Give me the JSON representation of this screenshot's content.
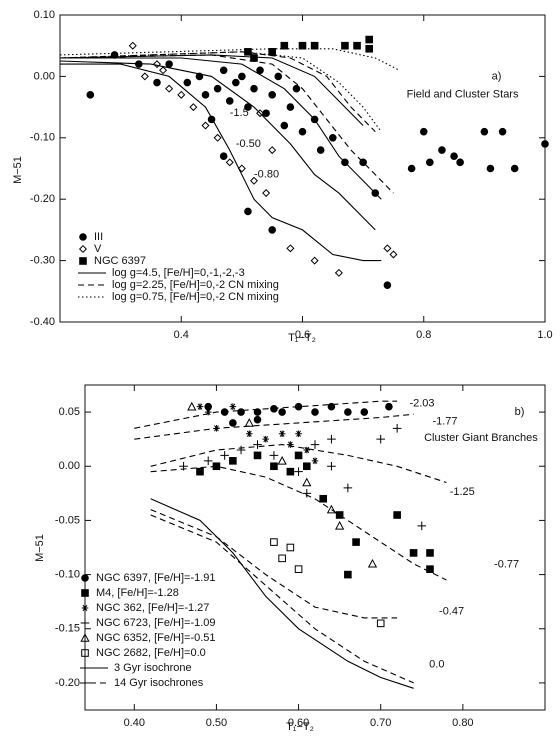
{
  "chart_data": [
    {
      "type": "scatter",
      "x_label": "T₁−T₂",
      "y_label": "M−51",
      "xlim": [
        0.2,
        1.0
      ],
      "ylim": [
        -0.4,
        0.1
      ],
      "xticks": [
        0.4,
        0.6,
        0.8,
        {
          "value": 1.0,
          "label": "1.0"
        }
      ],
      "yticks": [
        {
          "value": -0.4,
          "label": "-0.40"
        },
        {
          "value": -0.3,
          "label": "-0.30"
        },
        {
          "value": -0.2,
          "label": "-0.20"
        },
        {
          "value": -0.1,
          "label": "-0.10"
        },
        {
          "value": 0,
          "label": "0.00"
        },
        {
          "value": 0.1,
          "label": "0.10"
        }
      ],
      "legend": "lower left",
      "annotations": [
        "-1.5",
        "-0.50",
        "-0.80",
        "a)",
        "Field and Cluster Stars"
      ],
      "series": [
        {
          "name": "III",
          "marker": "circle",
          "filled": true,
          "color": "#000",
          "x": [
            0.29,
            0.25,
            0.33,
            0.36,
            0.38,
            0.41,
            0.43,
            0.44,
            0.46,
            0.47,
            0.48,
            0.49,
            0.5,
            0.51,
            0.52,
            0.53,
            0.54,
            0.55,
            0.56,
            0.57,
            0.58,
            0.59,
            0.6,
            0.62,
            0.63,
            0.65,
            0.67,
            0.7,
            0.72,
            0.74,
            0.78,
            0.8,
            0.81,
            0.83,
            0.85,
            0.86,
            0.9,
            0.91,
            0.93,
            0.95,
            1.0,
            0.55,
            0.51,
            0.47,
            0.45
          ],
          "values": [
            0.035,
            -0.03,
            0.02,
            -0.01,
            0.02,
            -0.01,
            0.0,
            -0.03,
            -0.02,
            0.01,
            -0.04,
            -0.01,
            0.0,
            -0.05,
            -0.02,
            0.01,
            -0.06,
            -0.03,
            0.0,
            -0.08,
            -0.05,
            -0.02,
            -0.09,
            -0.07,
            -0.12,
            -0.1,
            -0.14,
            -0.14,
            -0.19,
            -0.34,
            -0.15,
            -0.09,
            -0.14,
            -0.12,
            -0.13,
            -0.14,
            -0.09,
            -0.15,
            -0.09,
            -0.15,
            -0.11,
            -0.25,
            -0.22,
            -0.13,
            -0.07
          ]
        },
        {
          "name": "V",
          "marker": "diamond",
          "filled": false,
          "color": "#000",
          "x": [
            0.32,
            0.34,
            0.36,
            0.37,
            0.38,
            0.4,
            0.42,
            0.44,
            0.46,
            0.48,
            0.5,
            0.52,
            0.54,
            0.58,
            0.62,
            0.66,
            0.74,
            0.75,
            0.55,
            0.53
          ],
          "values": [
            0.05,
            0.0,
            0.02,
            0.01,
            -0.02,
            -0.03,
            -0.05,
            -0.08,
            -0.1,
            -0.14,
            -0.15,
            -0.17,
            -0.19,
            -0.28,
            -0.3,
            -0.32,
            -0.28,
            -0.29,
            -0.12,
            -0.06
          ]
        },
        {
          "name": "NGC 6397",
          "marker": "square",
          "filled": true,
          "color": "#000",
          "x": [
            0.51,
            0.52,
            0.55,
            0.57,
            0.6,
            0.62,
            0.67,
            0.69,
            0.71,
            0.71
          ],
          "values": [
            0.04,
            0.03,
            0.04,
            0.05,
            0.05,
            0.05,
            0.05,
            0.05,
            0.06,
            0.045
          ]
        },
        {
          "name": "log g=4.5, [Fe/H]=0,-1,-2,-3",
          "line": "solid",
          "color": "#000",
          "x": [
            0.2,
            0.3,
            0.38,
            0.44,
            0.48,
            0.52,
            0.55,
            0.6,
            0.65,
            0.7,
            0.73,
            null,
            0.2,
            0.35,
            0.45,
            0.52,
            0.58,
            0.62,
            0.66,
            0.72,
            null,
            0.2,
            0.4,
            0.5,
            0.57,
            0.62,
            0.66,
            0.7,
            0.73,
            null,
            0.2,
            0.45,
            0.55,
            0.62,
            0.66,
            0.7
          ],
          "values": [
            0.02,
            0.02,
            0.0,
            -0.05,
            -0.12,
            -0.2,
            -0.23,
            -0.25,
            -0.29,
            -0.3,
            -0.3,
            null,
            0.025,
            0.02,
            0.0,
            -0.05,
            -0.11,
            -0.16,
            -0.19,
            -0.25,
            null,
            0.03,
            0.03,
            0.02,
            -0.02,
            -0.07,
            -0.13,
            -0.17,
            -0.2,
            null,
            0.03,
            0.035,
            0.03,
            0.0,
            -0.04,
            -0.08
          ]
        },
        {
          "name": "log g=2.25, [Fe/H]=0,-2 CN mixing",
          "line": "dashed",
          "color": "#000",
          "x": [
            0.2,
            0.45,
            0.55,
            0.6,
            0.64,
            0.68,
            0.72,
            0.75,
            null,
            0.2,
            0.5,
            0.58,
            0.64,
            0.68,
            0.72
          ],
          "values": [
            0.03,
            0.035,
            0.02,
            -0.02,
            -0.07,
            -0.12,
            -0.16,
            -0.19,
            null,
            0.03,
            0.04,
            0.03,
            0.0,
            -0.05,
            -0.09
          ]
        },
        {
          "name": "log g=0.75, [Fe/H]=0,-2 CN mixing",
          "line": "dotted",
          "color": "#000",
          "x": [
            0.2,
            0.5,
            0.6,
            0.66,
            0.7,
            0.73,
            null,
            0.2,
            0.55,
            0.65,
            0.72,
            0.76
          ],
          "values": [
            0.03,
            0.04,
            0.03,
            -0.01,
            -0.05,
            -0.09,
            null,
            0.035,
            0.045,
            0.045,
            0.03,
            0.01
          ]
        }
      ]
    },
    {
      "type": "scatter",
      "x_label": "T₁−T₂",
      "y_label": "M−51",
      "xlim": [
        0.34,
        0.9
      ],
      "ylim": [
        -0.225,
        0.075
      ],
      "xticks": [
        {
          "value": 0.4,
          "label": "0.40"
        },
        {
          "value": 0.5,
          "label": "0.50"
        },
        {
          "value": 0.6,
          "label": "0.60"
        },
        {
          "value": 0.7,
          "label": "0.70"
        },
        {
          "value": 0.8,
          "label": "0.80"
        }
      ],
      "yticks": [
        {
          "value": -0.2,
          "label": "-0.20"
        },
        {
          "value": -0.15,
          "label": "-0.15"
        },
        {
          "value": -0.1,
          "label": "-0.10"
        },
        {
          "value": -0.05,
          "label": "-0.05"
        },
        {
          "value": 0,
          "label": "0.00"
        },
        {
          "value": 0.05,
          "label": "0.05"
        }
      ],
      "legend": "lower left",
      "annotations": [
        "b)",
        "Cluster Giant Branches",
        "-2.03",
        "-1.77",
        "-1.25",
        "-0.77",
        "-0.47",
        "0.0"
      ],
      "series": [
        {
          "name": "NGC 6397, [Fe/H]=-1.91",
          "marker": "circle",
          "filled": true,
          "color": "#000",
          "x": [
            0.49,
            0.51,
            0.53,
            0.55,
            0.57,
            0.58,
            0.6,
            0.62,
            0.64,
            0.66,
            0.68,
            0.71,
            0.52,
            0.55
          ],
          "values": [
            0.055,
            0.05,
            0.05,
            0.05,
            0.053,
            0.05,
            0.055,
            0.05,
            0.055,
            0.05,
            0.05,
            0.055,
            0.04,
            0.043
          ]
        },
        {
          "name": "M4, [Fe/H]=-1.28",
          "marker": "square",
          "filled": true,
          "color": "#000",
          "x": [
            0.48,
            0.5,
            0.52,
            0.55,
            0.57,
            0.59,
            0.6,
            0.61,
            0.63,
            0.65,
            0.67,
            0.66,
            0.72,
            0.74,
            0.76,
            0.76
          ],
          "values": [
            -0.005,
            0.0,
            0.005,
            0.01,
            0.0,
            -0.005,
            0.01,
            0.0,
            -0.03,
            -0.045,
            -0.07,
            -0.1,
            -0.045,
            -0.08,
            -0.08,
            -0.095
          ]
        },
        {
          "name": "NGC 362, [Fe/H]=-1.27",
          "marker": "asterisk",
          "filled": false,
          "color": "#000",
          "x": [
            0.48,
            0.49,
            0.5,
            0.52,
            0.54,
            0.56,
            0.58,
            0.59,
            0.6,
            0.61,
            0.62
          ],
          "values": [
            0.055,
            0.05,
            0.035,
            0.055,
            0.03,
            0.025,
            0.03,
            0.02,
            0.03,
            0.015,
            0.005
          ]
        },
        {
          "name": "NGC 6723, [Fe/H]=-1.09",
          "marker": "plus",
          "filled": false,
          "color": "#000",
          "x": [
            0.46,
            0.49,
            0.51,
            0.53,
            0.55,
            0.57,
            0.6,
            0.61,
            0.62,
            0.64,
            0.66,
            0.7,
            0.72,
            0.75,
            0.64
          ],
          "values": [
            0.0,
            0.005,
            0.01,
            0.015,
            0.02,
            0.01,
            -0.005,
            -0.025,
            0.02,
            0.0,
            -0.02,
            0.025,
            0.035,
            -0.055,
            0.025
          ]
        },
        {
          "name": "NGC 6352, [Fe/H]=-0.51",
          "marker": "triangle",
          "filled": false,
          "color": "#000",
          "x": [
            0.47,
            0.54,
            0.58,
            0.61,
            0.64,
            0.65,
            0.69
          ],
          "values": [
            0.055,
            0.04,
            0.005,
            -0.015,
            -0.04,
            -0.055,
            -0.09
          ]
        },
        {
          "name": "NGC 2682, [Fe/H]=0.0",
          "marker": "square",
          "filled": false,
          "color": "#000",
          "x": [
            0.57,
            0.59,
            0.58,
            0.6,
            0.7
          ],
          "values": [
            -0.07,
            -0.075,
            -0.085,
            -0.095,
            -0.145
          ]
        },
        {
          "name": "3 Gyr isochrone",
          "line": "solid",
          "color": "#000",
          "x": [
            0.42,
            0.48,
            0.52,
            0.56,
            0.6,
            0.66,
            0.7,
            0.74
          ],
          "values": [
            -0.03,
            -0.05,
            -0.08,
            -0.12,
            -0.15,
            -0.18,
            -0.195,
            -0.205
          ]
        },
        {
          "name": "14 Gyr isochrones",
          "line": "dashed",
          "color": "#000",
          "x": [
            0.4,
            0.5,
            0.6,
            0.7,
            0.72,
            null,
            0.4,
            0.5,
            0.6,
            0.7,
            0.74,
            null,
            0.42,
            0.5,
            0.58,
            0.66,
            0.72,
            0.78,
            null,
            0.42,
            0.5,
            0.56,
            0.62,
            0.68,
            0.74,
            0.78,
            null,
            0.42,
            0.5,
            0.56,
            0.62,
            0.68,
            0.72,
            null,
            0.42,
            0.5,
            0.56,
            0.62,
            0.68,
            0.74
          ],
          "values": [
            0.035,
            0.05,
            0.055,
            0.06,
            0.06,
            null,
            0.025,
            0.035,
            0.04,
            0.045,
            0.048,
            null,
            0.0,
            0.015,
            0.02,
            0.01,
            0.0,
            -0.015,
            null,
            -0.005,
            0.0,
            -0.01,
            -0.03,
            -0.06,
            -0.09,
            -0.105,
            null,
            -0.04,
            -0.065,
            -0.1,
            -0.13,
            -0.14,
            -0.14,
            null,
            -0.045,
            -0.07,
            -0.11,
            -0.15,
            -0.18,
            -0.2
          ]
        }
      ]
    }
  ]
}
